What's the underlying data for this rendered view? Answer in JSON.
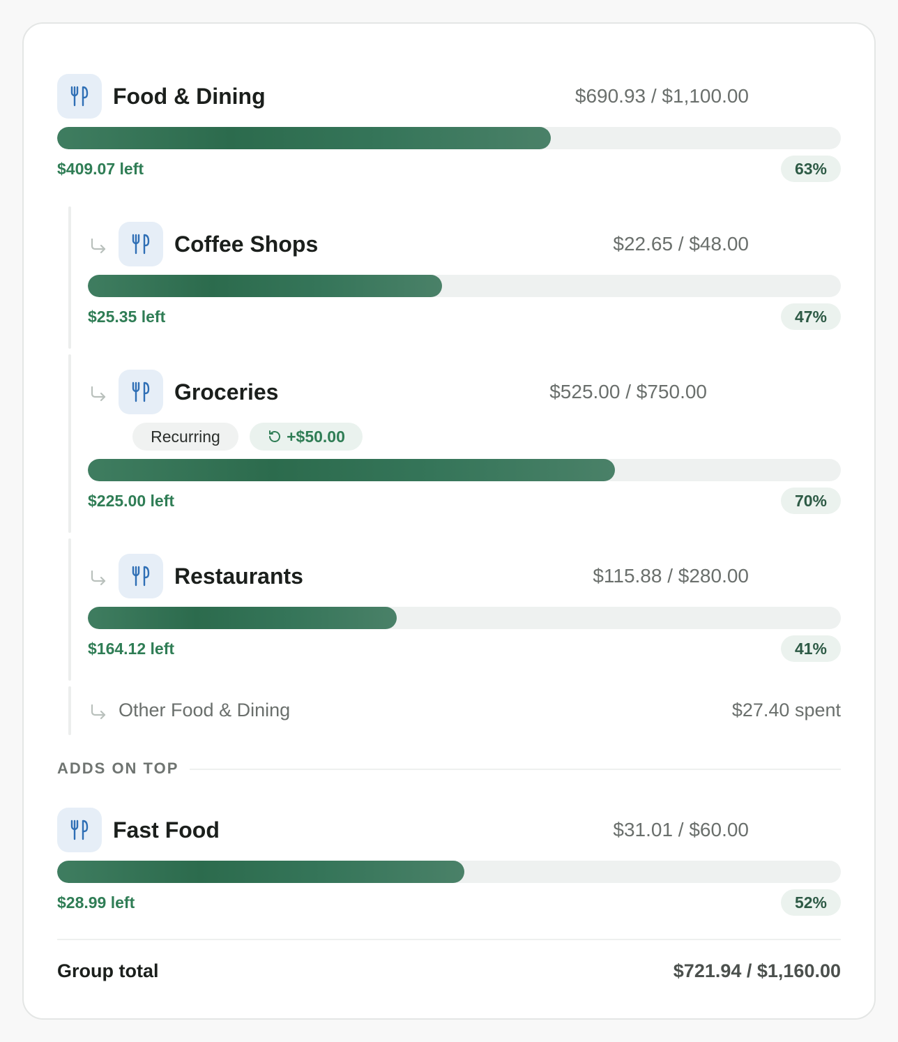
{
  "categories": {
    "food_dining": {
      "name": "Food & Dining",
      "amount": "$690.93 / $1,100.00",
      "left": "$409.07 left",
      "percent": "63%",
      "progress": 0.63,
      "icon": "fork-knife-icon"
    },
    "coffee_shops": {
      "name": "Coffee Shops",
      "amount": "$22.65 / $48.00",
      "left": "$25.35 left",
      "percent": "47%",
      "progress": 0.47,
      "icon": "fork-knife-icon"
    },
    "groceries": {
      "name": "Groceries",
      "amount": "$525.00 / $750.00",
      "left": "$225.00 left",
      "percent": "70%",
      "progress": 0.7,
      "icon": "fork-knife-icon",
      "badge_recurring": "Recurring",
      "badge_rollover": "+$50.00"
    },
    "restaurants": {
      "name": "Restaurants",
      "amount": "$115.88 / $280.00",
      "left": "$164.12 left",
      "percent": "41%",
      "progress": 0.41,
      "icon": "fork-knife-icon"
    },
    "other": {
      "name": "Other Food & Dining",
      "spent": "$27.40 spent"
    },
    "fast_food": {
      "name": "Fast Food",
      "amount": "$31.01 / $60.00",
      "left": "$28.99 left",
      "percent": "52%",
      "progress": 0.52,
      "icon": "fork-knife-icon"
    }
  },
  "section_adds_on_top": "ADDS ON TOP",
  "total": {
    "label": "Group total",
    "value": "$721.94 / $1,160.00"
  },
  "colors": {
    "bar_fill": "#2c6b4d",
    "left_text": "#2f7d55",
    "icon_bg": "#e6eef7",
    "icon_stroke": "#2f6fb5"
  }
}
